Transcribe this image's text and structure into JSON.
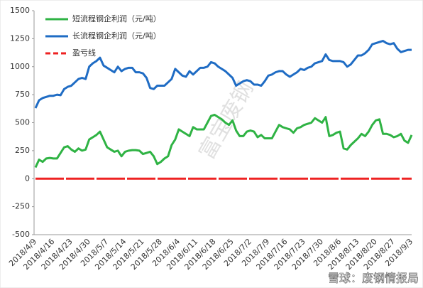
{
  "chart_data": {
    "type": "line",
    "categories": [
      "2018/4/9",
      null,
      null,
      null,
      null,
      "2018/4/16",
      null,
      null,
      null,
      null,
      "2018/4/23",
      null,
      null,
      null,
      null,
      "2018/4/30",
      null,
      null,
      null,
      null,
      "2018/5/7",
      null,
      null,
      null,
      null,
      "2018/5/14",
      null,
      null,
      null,
      null,
      "2018/5/21",
      null,
      null,
      null,
      null,
      "2018/5/28",
      null,
      null,
      null,
      null,
      "2018/6/4",
      null,
      null,
      null,
      null,
      "2018/6/11",
      null,
      null,
      null,
      null,
      "2018/6/18",
      null,
      null,
      null,
      null,
      "2018/6/25",
      null,
      null,
      null,
      null,
      "2018/7/2",
      null,
      null,
      null,
      null,
      "2018/7/9",
      null,
      null,
      null,
      null,
      "2018/7/16",
      null,
      null,
      null,
      null,
      "2018/7/23",
      null,
      null,
      null,
      null,
      "2018/7/30",
      null,
      null,
      null,
      null,
      "2018/8/6",
      null,
      null,
      null,
      null,
      "2018/8/13",
      null,
      null,
      null,
      null,
      "2018/8/20",
      null,
      null,
      null,
      null,
      "2018/8/27",
      null,
      null,
      null,
      null,
      "2018/9/3"
    ],
    "series": [
      {
        "name": "短流程钢企利润（元/吨）",
        "color": "#2fb344",
        "values": [
          100,
          170,
          150,
          180,
          185,
          180,
          180,
          230,
          280,
          290,
          260,
          240,
          270,
          250,
          260,
          350,
          370,
          390,
          420,
          350,
          280,
          260,
          240,
          250,
          200,
          240,
          250,
          255,
          255,
          250,
          220,
          230,
          240,
          200,
          130,
          150,
          180,
          200,
          300,
          350,
          440,
          420,
          400,
          380,
          460,
          440,
          440,
          440,
          500,
          560,
          570,
          550,
          530,
          500,
          480,
          520,
          430,
          380,
          380,
          420,
          430,
          420,
          370,
          390,
          360,
          360,
          360,
          420,
          480,
          460,
          450,
          440,
          410,
          450,
          460,
          480,
          490,
          500,
          540,
          520,
          500,
          550,
          380,
          390,
          410,
          420,
          270,
          260,
          300,
          330,
          360,
          400,
          380,
          420,
          480,
          520,
          530,
          400,
          400,
          390,
          370,
          380,
          400,
          340,
          320,
          390
        ]
      },
      {
        "name": "长流程钢企利润（元/吨）",
        "color": "#1f6cc4",
        "values": [
          630,
          700,
          720,
          730,
          740,
          740,
          750,
          745,
          800,
          820,
          830,
          860,
          890,
          900,
          890,
          1000,
          1030,
          1050,
          1080,
          1010,
          990,
          970,
          950,
          1000,
          960,
          980,
          990,
          990,
          950,
          950,
          940,
          900,
          810,
          800,
          830,
          830,
          830,
          860,
          890,
          980,
          950,
          920,
          910,
          960,
          930,
          960,
          990,
          990,
          1000,
          1040,
          1030,
          1000,
          980,
          960,
          930,
          900,
          830,
          850,
          870,
          880,
          870,
          840,
          840,
          830,
          870,
          920,
          930,
          950,
          960,
          960,
          930,
          910,
          930,
          950,
          980,
          970,
          990,
          1000,
          1030,
          1040,
          1050,
          1110,
          1060,
          1050,
          1050,
          1050,
          1040,
          1000,
          1020,
          1060,
          1100,
          1100,
          1120,
          1150,
          1200,
          1210,
          1220,
          1230,
          1210,
          1200,
          1210,
          1160,
          1130,
          1140,
          1150,
          1150
        ]
      },
      {
        "name": "盈亏线",
        "color": "#ee2222",
        "dashed": true,
        "values": [
          0,
          0,
          0,
          0,
          0,
          0,
          0,
          0,
          0,
          0,
          0,
          0,
          0,
          0,
          0,
          0,
          0,
          0,
          0,
          0,
          0,
          0,
          0,
          0,
          0,
          0,
          0,
          0,
          0,
          0,
          0,
          0,
          0,
          0,
          0,
          0,
          0,
          0,
          0,
          0,
          0,
          0,
          0,
          0,
          0,
          0,
          0,
          0,
          0,
          0,
          0,
          0,
          0,
          0,
          0,
          0,
          0,
          0,
          0,
          0,
          0,
          0,
          0,
          0,
          0,
          0,
          0,
          0,
          0,
          0,
          0,
          0,
          0,
          0,
          0,
          0,
          0,
          0,
          0,
          0,
          0,
          0,
          0,
          0,
          0,
          0,
          0,
          0,
          0,
          0,
          0,
          0,
          0,
          0,
          0,
          0,
          0,
          0,
          0,
          0,
          0,
          0,
          0,
          0,
          0,
          0
        ]
      }
    ],
    "ylim": [
      -500,
      1500
    ],
    "yticks": [
      -500,
      -250,
      0,
      250,
      500,
      750,
      1000,
      1250,
      1500
    ],
    "grid": false,
    "watermark": "富宝废钢",
    "footer": "雪球：废钢情报局"
  }
}
